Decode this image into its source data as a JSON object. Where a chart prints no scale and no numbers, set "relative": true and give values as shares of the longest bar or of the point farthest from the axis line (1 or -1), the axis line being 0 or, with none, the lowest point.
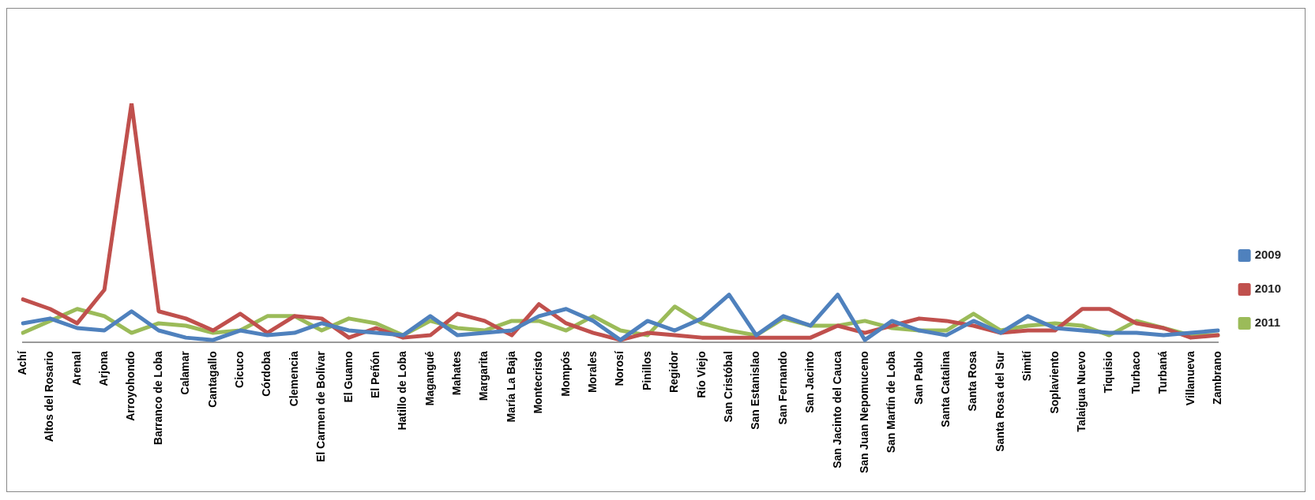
{
  "chart_data": {
    "type": "line",
    "relative": true,
    "legend": "right",
    "grid": false,
    "marker": "none",
    "categories": [
      "Achí",
      "Altos del Rosario",
      "Arenal",
      "Arjona",
      "Arroyohondo",
      "Barranco de Loba",
      "Calamar",
      "Cantagallo",
      "Cicuco",
      "Córdoba",
      "Clemencia",
      "El Carmen de Bolívar",
      "El Guamo",
      "El Peñón",
      "Hatillo de Loba",
      "Magangué",
      "Mahates",
      "Margarita",
      "María La Baja",
      "Montecristo",
      "Mompós",
      "Morales",
      "Norosí",
      "Pinillos",
      "Regidor",
      "Río Viejo",
      "San Cristóbal",
      "San Estanislao",
      "San Fernando",
      "San Jacinto",
      "San Jacinto del Cauca",
      "San Juan Nepomuceno",
      "San Martín de Loba",
      "San Pablo",
      "Santa Catalina",
      "Santa Rosa",
      "Santa Rosa del Sur",
      "Simití",
      "Soplaviento",
      "Talaigua Nuevo",
      "Tiquisio",
      "Turbaco",
      "Turbaná",
      "Villanueva",
      "Zambrano"
    ],
    "series": [
      {
        "name": "2009",
        "color": "#4f81bd",
        "values": [
          0.08,
          0.1,
          0.06,
          0.05,
          0.13,
          0.05,
          0.02,
          0.01,
          0.05,
          0.03,
          0.04,
          0.08,
          0.05,
          0.04,
          0.03,
          0.11,
          0.03,
          0.04,
          0.05,
          0.11,
          0.14,
          0.09,
          0.01,
          0.09,
          0.05,
          0.1,
          0.2,
          0.03,
          0.11,
          0.07,
          0.2,
          0.01,
          0.09,
          0.05,
          0.03,
          0.09,
          0.04,
          0.11,
          0.06,
          0.05,
          0.04,
          0.04,
          0.03,
          0.04,
          0.05
        ]
      },
      {
        "name": "2010",
        "color": "#c0504d",
        "values": [
          0.18,
          0.14,
          0.08,
          0.22,
          1,
          0.13,
          0.1,
          0.05,
          0.12,
          0.04,
          0.11,
          0.1,
          0.02,
          0.06,
          0.02,
          0.03,
          0.12,
          0.09,
          0.03,
          0.16,
          0.08,
          0.04,
          0.01,
          0.04,
          0.03,
          0.02,
          0.02,
          0.02,
          0.02,
          0.02,
          0.07,
          0.04,
          0.07,
          0.1,
          0.09,
          0.07,
          0.04,
          0.05,
          0.05,
          0.14,
          0.14,
          0.08,
          0.06,
          0.02,
          0.03
        ]
      },
      {
        "name": "2011",
        "color": "#9bbb59",
        "values": [
          0.04,
          0.09,
          0.14,
          0.11,
          0.04,
          0.08,
          0.07,
          0.04,
          0.05,
          0.11,
          0.11,
          0.05,
          0.1,
          0.08,
          0.03,
          0.09,
          0.06,
          0.05,
          0.09,
          0.09,
          0.05,
          0.11,
          0.05,
          0.03,
          0.15,
          0.08,
          0.05,
          0.03,
          0.1,
          0.07,
          0.07,
          0.09,
          0.06,
          0.05,
          0.05,
          0.12,
          0.05,
          0.07,
          0.08,
          0.07,
          0.03,
          0.09,
          0.06,
          0.03,
          0.03
        ]
      }
    ]
  }
}
